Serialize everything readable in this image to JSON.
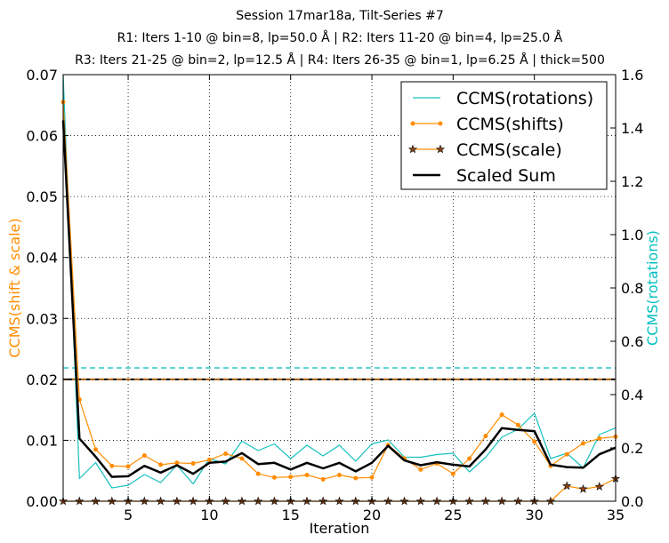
{
  "chart_data": {
    "type": "line",
    "title_lines": [
      "Session 17mar18a, Tilt-Series #7",
      "R1: Iters 1-10 @ bin=8, lp=50.0 Å | R2: Iters 11-20 @ bin=4, lp=25.0 Å",
      "R3: Iters 21-25 @ bin=2, lp=12.5 Å | R4: Iters 26-35 @ bin=1, lp=6.25 Å | thick=500"
    ],
    "xlabel": "Iteration",
    "ylabel_left": "CCMS(shift & scale)",
    "ylabel_right": "CCMS(rotations)",
    "xlim": [
      1,
      35
    ],
    "ylim_left": [
      0,
      0.07
    ],
    "ylim_right": [
      0,
      1.6
    ],
    "x_ticks": [
      5,
      10,
      15,
      20,
      25,
      30,
      35
    ],
    "y_left_ticks": [
      "0.00",
      "0.01",
      "0.02",
      "0.03",
      "0.04",
      "0.05",
      "0.06",
      "0.07"
    ],
    "y_right_ticks": [
      "0.0",
      "0.2",
      "0.4",
      "0.6",
      "0.8",
      "1.0",
      "1.2",
      "1.4",
      "1.6"
    ],
    "grid": true,
    "legend_position": "top-right",
    "colors": {
      "rotations": "#17bfbf",
      "shifts": "#ff8c00",
      "scale": "#ff8c00",
      "scale_marker_fill": "#8b4513",
      "sum": "#000000",
      "left_label": "#ff8c00",
      "right_label": "#00bfbf"
    },
    "series": [
      {
        "name": "CCMS(rotations)",
        "axis": "right",
        "style": "line",
        "x": [
          1,
          2,
          3,
          4,
          5,
          6,
          7,
          8,
          9,
          10,
          11,
          12,
          13,
          14,
          15,
          16,
          17,
          18,
          19,
          20,
          21,
          22,
          23,
          24,
          25,
          26,
          27,
          28,
          29,
          30,
          31,
          32,
          33,
          34,
          35
        ],
        "y": [
          1.6,
          0.085,
          0.145,
          0.05,
          0.06,
          0.1,
          0.07,
          0.135,
          0.065,
          0.16,
          0.14,
          0.225,
          0.19,
          0.215,
          0.16,
          0.21,
          0.17,
          0.21,
          0.15,
          0.215,
          0.23,
          0.165,
          0.165,
          0.175,
          0.18,
          0.11,
          0.165,
          0.24,
          0.27,
          0.33,
          0.16,
          0.18,
          0.125,
          0.25,
          0.275
        ]
      },
      {
        "name": "CCMS(shifts)",
        "axis": "left",
        "style": "line-dot",
        "x": [
          1,
          2,
          3,
          4,
          5,
          6,
          7,
          8,
          9,
          10,
          11,
          12,
          13,
          14,
          15,
          16,
          17,
          18,
          19,
          20,
          21,
          22,
          23,
          24,
          25,
          26,
          27,
          28,
          29,
          30,
          31,
          32,
          33,
          34,
          35
        ],
        "y": [
          0.0655,
          0.0167,
          0.0085,
          0.0058,
          0.0057,
          0.0075,
          0.006,
          0.0063,
          0.0062,
          0.0068,
          0.0078,
          0.007,
          0.0045,
          0.0039,
          0.004,
          0.0043,
          0.0036,
          0.0043,
          0.0038,
          0.0039,
          0.0092,
          0.007,
          0.0052,
          0.0062,
          0.0045,
          0.007,
          0.0107,
          0.0142,
          0.0125,
          0.0098,
          0.0058,
          0.0077,
          0.0095,
          0.0103,
          0.0106
        ]
      },
      {
        "name": "CCMS(scale)",
        "axis": "left",
        "style": "line-star",
        "x": [
          1,
          2,
          3,
          4,
          5,
          6,
          7,
          8,
          9,
          10,
          11,
          12,
          13,
          14,
          15,
          16,
          17,
          18,
          19,
          20,
          21,
          22,
          23,
          24,
          25,
          26,
          27,
          28,
          29,
          30,
          31,
          32,
          33,
          34,
          35
        ],
        "y": [
          0,
          0,
          0,
          0,
          0,
          0,
          0,
          0,
          0,
          0,
          0,
          0,
          0,
          0,
          0,
          0,
          0,
          0,
          0,
          0,
          0,
          0,
          0,
          0,
          0,
          0,
          0,
          0,
          0,
          0,
          0,
          0.0025,
          0.002,
          0.0024,
          0.0037
        ]
      },
      {
        "name": "Scaled Sum",
        "axis": "left",
        "style": "thick-line",
        "x": [
          1,
          2,
          3,
          4,
          5,
          6,
          7,
          8,
          9,
          10,
          11,
          12,
          13,
          14,
          15,
          16,
          17,
          18,
          19,
          20,
          21,
          22,
          23,
          24,
          25,
          26,
          27,
          28,
          29,
          30,
          31,
          32,
          33,
          34,
          35
        ],
        "y": [
          0.0625,
          0.0103,
          0.0073,
          0.004,
          0.0041,
          0.0058,
          0.0047,
          0.0059,
          0.0045,
          0.0063,
          0.0065,
          0.0079,
          0.0061,
          0.0063,
          0.0052,
          0.0063,
          0.0054,
          0.0063,
          0.0049,
          0.0063,
          0.0091,
          0.0067,
          0.0059,
          0.0064,
          0.006,
          0.0057,
          0.0085,
          0.012,
          0.0117,
          0.0115,
          0.006,
          0.0056,
          0.0055,
          0.0077,
          0.0088
        ]
      }
    ],
    "reference_lines": [
      {
        "axis": "right",
        "y": 0.5,
        "color": "#00bfbf",
        "style": "dashed"
      },
      {
        "axis": "left",
        "y": 0.02,
        "color": "#000000",
        "style": "solid"
      },
      {
        "axis": "left",
        "y": 0.02,
        "color": "#ff8c00",
        "style": "dashed"
      }
    ]
  }
}
